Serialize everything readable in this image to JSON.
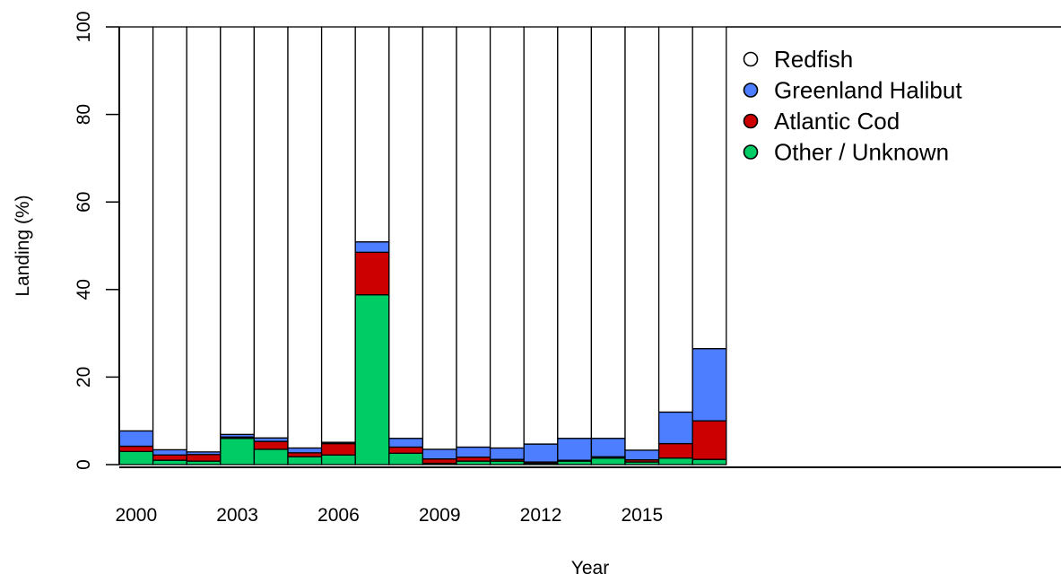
{
  "chart_data": {
    "type": "bar",
    "stacked": true,
    "xlabel": "Year",
    "ylabel": "Landing (%)",
    "ylim": [
      0,
      100
    ],
    "yticks": [
      0,
      20,
      40,
      60,
      80,
      100
    ],
    "x_tick_labels": [
      "2000",
      "2003",
      "2006",
      "2009",
      "2012",
      "2015"
    ],
    "categories": [
      "2000",
      "2001",
      "2002",
      "2003",
      "2004",
      "2005",
      "2006",
      "2007",
      "2008",
      "2009",
      "2010",
      "2011",
      "2012",
      "2013",
      "2014",
      "2015",
      "2016",
      "2017"
    ],
    "legend_position": "top-right",
    "grid": false,
    "series": [
      {
        "name": "Other / Unknown",
        "color": "#00CC66",
        "values": [
          3.0,
          1.0,
          0.8,
          6.0,
          3.5,
          1.8,
          2.2,
          38.8,
          2.6,
          0.3,
          0.8,
          0.8,
          0.3,
          0.8,
          1.5,
          0.6,
          1.5,
          1.2
        ]
      },
      {
        "name": "Atlantic Cod",
        "color": "#CC0000",
        "values": [
          1.2,
          1.2,
          1.5,
          0.3,
          1.8,
          0.9,
          2.6,
          9.7,
          1.4,
          1.0,
          0.9,
          0.4,
          0.3,
          0.2,
          0.3,
          0.5,
          3.3,
          8.8
        ]
      },
      {
        "name": "Greenland Halibut",
        "color": "#4C7EFF",
        "values": [
          3.5,
          1.2,
          0.6,
          0.6,
          0.8,
          1.1,
          0.3,
          2.4,
          2.0,
          2.2,
          2.3,
          2.6,
          4.1,
          5.0,
          4.2,
          2.2,
          7.2,
          16.5
        ]
      },
      {
        "name": "Redfish",
        "color": "#FFFFFF",
        "values": [
          92.3,
          96.6,
          97.1,
          93.1,
          93.9,
          96.2,
          94.9,
          49.1,
          94.0,
          96.5,
          96.0,
          96.2,
          95.3,
          94.0,
          94.0,
          96.7,
          88.0,
          73.5
        ]
      }
    ],
    "legend": [
      "Redfish",
      "Greenland Halibut",
      "Atlantic Cod",
      "Other / Unknown"
    ]
  }
}
